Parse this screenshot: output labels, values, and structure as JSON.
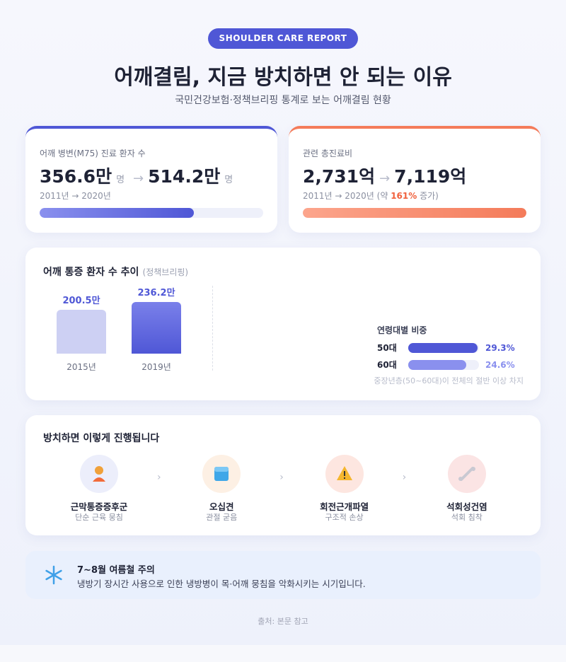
{
  "header": {
    "badge": "SHOULDER CARE REPORT",
    "title": "어깨결림, 지금 방치하면 안 되는 이유",
    "subtitle": "국민건강보험·정책브리핑 통계로 보는 어깨결림 현황"
  },
  "cards": [
    {
      "label": "어깨 병변(M75) 진료 환자 수",
      "from": "356.6만",
      "from_unit": "명",
      "arrow": "→",
      "to": "514.2만",
      "to_unit": "명",
      "note": "2011년 → 2020년",
      "bar_percent": 69
    },
    {
      "label": "관련 총진료비",
      "from": "2,731억",
      "arrow": "→",
      "to": "7,119억",
      "note_prefix": "2011년 → 2020년 (약 ",
      "note_highlight": "161%",
      "note_suffix": " 증가)",
      "bar_percent": 100
    }
  ],
  "trend": {
    "title": "어깨 통증 환자 수 추이",
    "source": "(정책브리핑)",
    "categories": [
      "2015년",
      "2019년"
    ],
    "values": [
      200.5,
      236.2
    ],
    "value_labels": [
      "200.5만",
      "236.2만"
    ]
  },
  "age": {
    "title": "연령대별 비중",
    "categories": [
      "50대",
      "60대"
    ],
    "values": [
      29.3,
      24.6
    ],
    "value_labels": [
      "29.3%",
      "24.6%"
    ],
    "xlim": [
      0,
      30
    ],
    "note": "중장년층(50~60대)이 전체의 절반 이상 차지"
  },
  "progression": {
    "title": "방치하면 이렇게 진행됩니다",
    "separator": "›",
    "steps": [
      {
        "label": "근막통증증후군",
        "desc": "단순 근육 뭉침"
      },
      {
        "label": "오십견",
        "desc": "관절 굳음"
      },
      {
        "label": "회전근개파열",
        "desc": "구조적 손상"
      },
      {
        "label": "석회성건염",
        "desc": "석회 침착"
      }
    ]
  },
  "notice": {
    "title": "7~8월 여름철 주의",
    "body": "냉방기 장시간 사용으로 인한 냉방병이 목·어깨 뭉침을 악화시키는 시기입니다."
  },
  "footer": "출처: 본문 참고"
}
